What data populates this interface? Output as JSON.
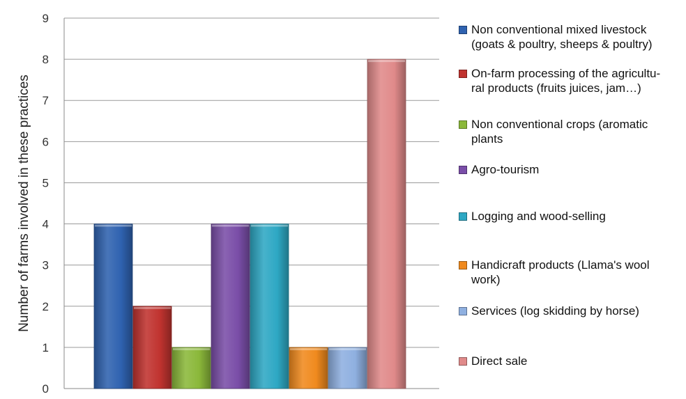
{
  "chart_data": {
    "type": "bar",
    "title": "",
    "xlabel": "",
    "ylabel": "Number of farms involved in these practices",
    "ylim": [
      0,
      9
    ],
    "yticks": [
      "0",
      "1",
      "2",
      "3",
      "4",
      "5",
      "6",
      "7",
      "8",
      "9"
    ],
    "grid": true,
    "legend_position": "right",
    "series": [
      {
        "name": "Non conventional mixed livestock\n(goats & poultry, sheeps & poultry)",
        "value": 4,
        "color": "#2f62b0"
      },
      {
        "name": "On-farm processing of the agricultu-\nral products (fruits juices, jam…)",
        "value": 2,
        "color": "#c0332f"
      },
      {
        "name": "Non conventional crops (aromatic\nplants",
        "value": 1,
        "color": "#8bb83a"
      },
      {
        "name": "Agro-tourism",
        "value": 4,
        "color": "#7a4ea8"
      },
      {
        "name": "Logging and wood-selling",
        "value": 4,
        "color": "#2ea8c4"
      },
      {
        "name": "Handicraft products (Llama's wool\nwork)",
        "value": 1,
        "color": "#f08a1e"
      },
      {
        "name": "Services (log skidding by horse)",
        "value": 1,
        "color": "#8fb0e0"
      },
      {
        "name": "Direct sale",
        "value": 8,
        "color": "#e08a8a"
      }
    ]
  }
}
